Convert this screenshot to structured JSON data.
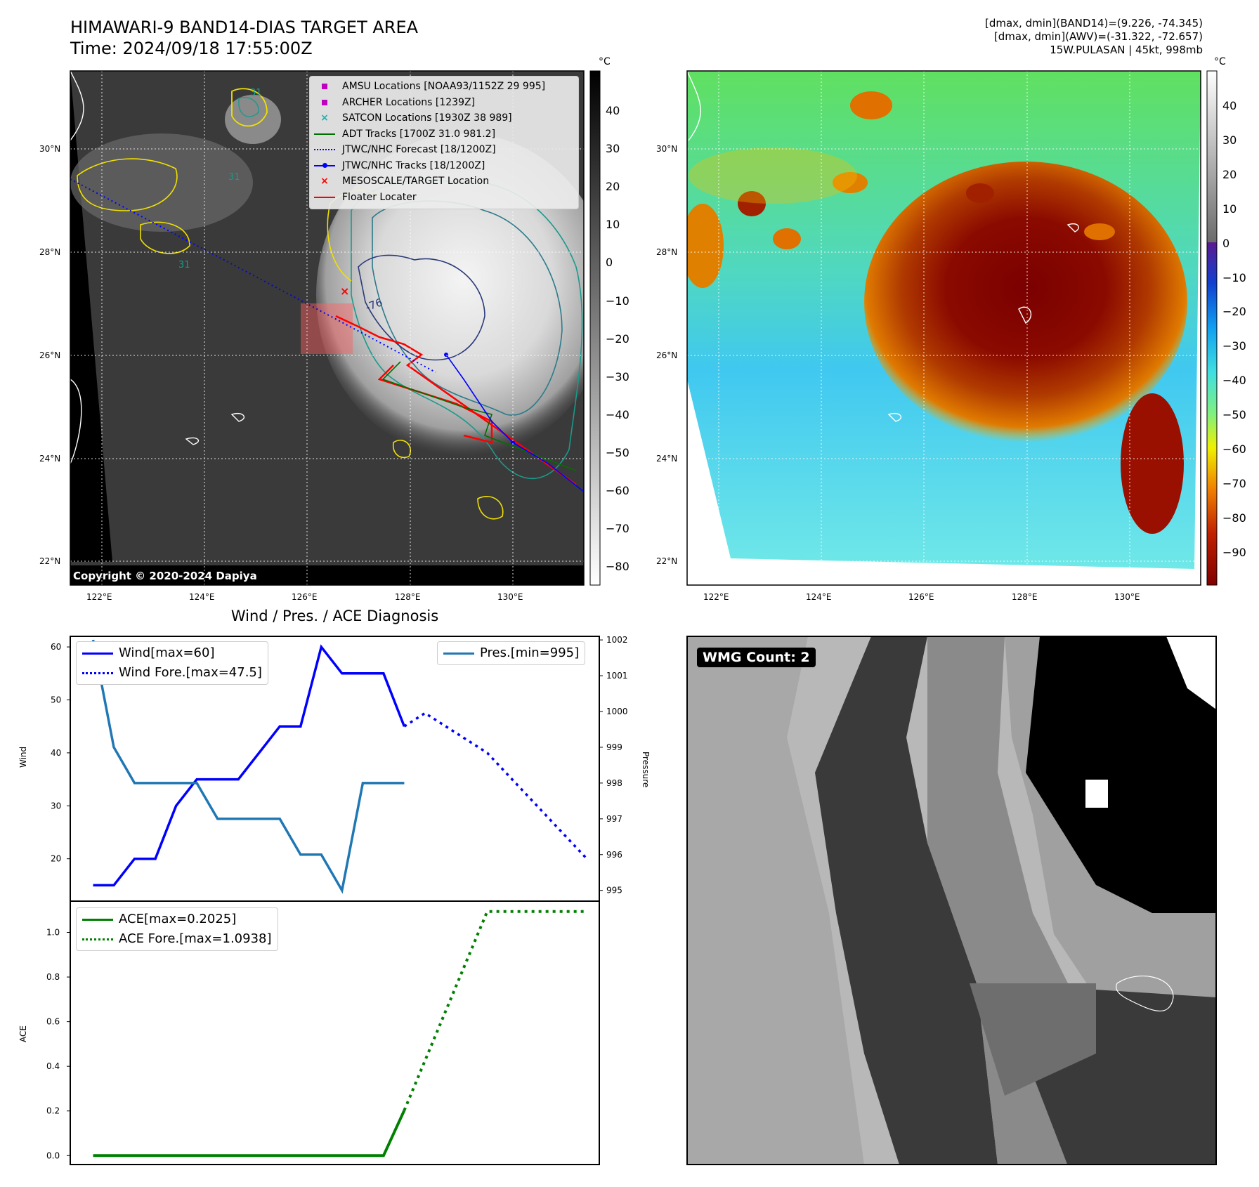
{
  "ir_panel": {
    "title_line1": "HIMAWARI-9 BAND14-DIAS TARGET AREA",
    "title_line2": "Time: 2024/09/18 17:55:00Z",
    "copyright": "Copyright © 2020-2024 Dapiya",
    "colorbar_unit": "°C",
    "colorbar_ticks": [
      "40",
      "30",
      "20",
      "10",
      "0",
      "−10",
      "−20",
      "−30",
      "−40",
      "−50",
      "−60",
      "−70",
      "−80"
    ],
    "lat_labels": [
      "30°N",
      "28°N",
      "26°N",
      "24°N",
      "22°N"
    ],
    "lon_labels": [
      "122°E",
      "124°E",
      "126°E",
      "128°E",
      "130°E"
    ],
    "legend": [
      {
        "label": "AMSU Locations [NOAA93/1152Z 29 995]",
        "color": "#c000c0",
        "marker": "square"
      },
      {
        "label": "ARCHER Locations [1239Z]",
        "color": "#c000c0",
        "marker": "square"
      },
      {
        "label": "SATCON Locations [1930Z 38 989]",
        "color": "#20b0b0",
        "marker": "x"
      },
      {
        "label": "ADT Tracks [1700Z 31.0 981.2]",
        "color": "#007000",
        "marker": "line"
      },
      {
        "label": "JTWC/NHC Forecast [18/1200Z]",
        "color": "#0000ff",
        "marker": "dotted"
      },
      {
        "label": "JTWC/NHC Tracks [18/1200Z]",
        "color": "#0000ff",
        "marker": "dotline"
      },
      {
        "label": "MESOSCALE/TARGET Location",
        "color": "#ff0000",
        "marker": "x"
      },
      {
        "label": "Floater Locater",
        "color": "#ff0000",
        "marker": "line"
      }
    ],
    "contour_labels": [
      "31",
      "31",
      "31",
      "-76"
    ]
  },
  "awv_panel": {
    "info_line1": "[dmax, dmin](BAND14)=(9.226, -74.345)",
    "info_line2": "[dmax, dmin](AWV)=(-31.322, -72.657)",
    "info_line3": "15W.PULASAN | 45kt, 998mb",
    "colorbar_unit": "°C",
    "colorbar_ticks": [
      "40",
      "30",
      "20",
      "10",
      "0",
      "−10",
      "−20",
      "−30",
      "−40",
      "−50",
      "−60",
      "−70",
      "−80",
      "−90"
    ],
    "lat_labels": [
      "30°N",
      "28°N",
      "26°N",
      "24°N",
      "22°N"
    ],
    "lon_labels": [
      "122°E",
      "124°E",
      "126°E",
      "128°E",
      "130°E"
    ]
  },
  "wmg_panel": {
    "label": "WMG Count: 2"
  },
  "chart_data": [
    {
      "type": "line",
      "title": "Wind / Pres. / ACE Diagnosis",
      "ylabel": "Wind",
      "ylabel_right": "Pressure",
      "ylim": [
        12,
        62
      ],
      "ylim_right": [
        994.7,
        1002.1
      ],
      "yticks": [
        20,
        30,
        40,
        50,
        60
      ],
      "yticks_right": [
        995,
        996,
        997,
        998,
        999,
        1000,
        1001,
        1002
      ],
      "legend_left": [
        "Wind[max=60]",
        "Wind Fore.[max=47.5]"
      ],
      "legend_right": [
        "Pres.[min=995]"
      ],
      "series": [
        {
          "name": "Wind[max=60]",
          "color": "#0000ff",
          "style": "solid",
          "axis": "left",
          "x": [
            0,
            1,
            2,
            3,
            4,
            5,
            6,
            7,
            8,
            9,
            10,
            11,
            12,
            13,
            14,
            15
          ],
          "values": [
            15,
            15,
            20,
            20,
            30,
            35,
            35,
            35,
            40,
            45,
            45,
            60,
            55,
            55,
            55,
            45
          ]
        },
        {
          "name": "Wind Fore.[max=47.5]",
          "color": "#0000ff",
          "style": "dotted",
          "axis": "left",
          "x": [
            15,
            16,
            19,
            23.8
          ],
          "values": [
            45,
            47.5,
            40,
            20
          ]
        },
        {
          "name": "Pres.[min=995]",
          "color": "#1f77b4",
          "style": "solid",
          "axis": "right",
          "x": [
            0,
            1,
            2,
            3,
            4,
            5,
            6,
            7,
            8,
            9,
            10,
            11,
            12,
            13,
            14,
            15
          ],
          "values": [
            1002,
            999,
            998,
            998,
            998,
            998,
            997,
            997,
            997,
            997,
            996,
            996,
            995,
            998,
            998,
            998
          ]
        }
      ]
    },
    {
      "type": "line",
      "ylabel": "ACE",
      "ylim": [
        -0.04,
        1.14
      ],
      "yticks": [
        0.0,
        0.2,
        0.4,
        0.6,
        0.8,
        1.0
      ],
      "ytick_labels": [
        "0.0",
        "0.2",
        "0.4",
        "0.6",
        "0.8",
        "1.0"
      ],
      "legend": [
        "ACE[max=0.2025]",
        "ACE Fore.[max=1.0938]"
      ],
      "series": [
        {
          "name": "ACE[max=0.2025]",
          "color": "#008000",
          "style": "solid",
          "x": [
            0,
            14,
            15
          ],
          "values": [
            0,
            0,
            0.2025
          ]
        },
        {
          "name": "ACE Fore.[max=1.0938]",
          "color": "#008000",
          "style": "dotted",
          "x": [
            15,
            19,
            23.8
          ],
          "values": [
            0.2025,
            1.0938,
            1.0938
          ]
        }
      ]
    }
  ]
}
